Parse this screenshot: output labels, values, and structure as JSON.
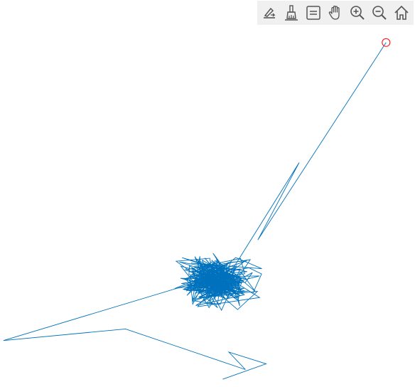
{
  "toolbar": {
    "buttons": [
      {
        "name": "edit-icon"
      },
      {
        "name": "brush-icon"
      },
      {
        "name": "legend-icon"
      },
      {
        "name": "pan-icon"
      },
      {
        "name": "zoom-in-icon"
      },
      {
        "name": "zoom-out-icon"
      },
      {
        "name": "home-icon"
      }
    ]
  },
  "chart_data": {
    "type": "line",
    "title": "",
    "xlabel": "",
    "ylabel": "",
    "axes_visible": false,
    "grid": false,
    "xlim": [
      0,
      100
    ],
    "ylim": [
      0,
      100
    ],
    "line_color": "#0072BD",
    "marker_color": "#FF0000",
    "end_marker": {
      "x": 93.0,
      "y": 89.0,
      "shape": "circle"
    },
    "random_walk": {
      "count": 380,
      "x_center": 52.5,
      "x_spread": 13.0,
      "y_center": 27.5,
      "y_spread": 9.0,
      "seed": 7
    },
    "series": [
      {
        "prefix": [
          [
            53.5,
            2.0
          ],
          [
            64.0,
            6.0
          ],
          [
            55.0,
            9.0
          ],
          [
            59.0,
            4.5
          ],
          [
            30.0,
            15.0
          ]
        ],
        "walk_start": [
          0.5,
          12.0
        ],
        "suffix": [
          [
            72.0,
            58.0
          ],
          [
            62.0,
            38.0
          ],
          [
            93.0,
            89.0
          ]
        ]
      }
    ]
  }
}
